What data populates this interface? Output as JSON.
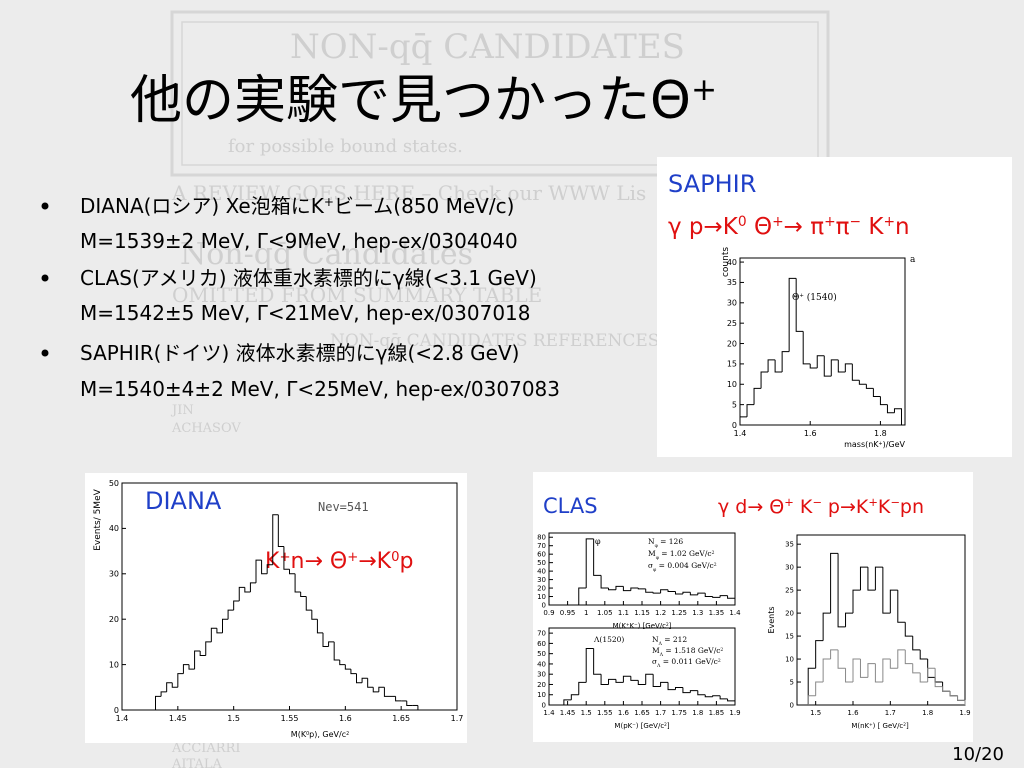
{
  "title": [
    {
      "text": "他の実験で見つかったΘ"
    },
    {
      "sup": "+"
    }
  ],
  "bullets": [
    {
      "lines": [
        [
          {
            "text": "DIANA(ロシア) Xe泡箱にK"
          },
          {
            "sup": "+"
          },
          {
            "text": "ビーム(850 MeV/c)"
          }
        ],
        [
          {
            "text": "M=1539±2 MeV, Γ<9MeV, hep-ex/0304040"
          }
        ]
      ]
    },
    {
      "lines": [
        [
          {
            "text": "CLAS(アメリカ) 液体重水素標的にγ線(<3.1 GeV)"
          }
        ],
        [
          {
            "text": "M=1542±5 MeV, Γ<21MeV, hep-ex/0307018"
          }
        ]
      ]
    },
    {
      "lines": [
        [
          {
            "text": "SAPHIR(ドイツ) 液体水素標的にγ線(<2.8 GeV)"
          }
        ],
        [
          {
            "text": "M=1540±4±2 MeV, Γ<25MeV, hep-ex/0307083"
          }
        ]
      ]
    }
  ],
  "page_number": "10/20",
  "watermark": [
    "NON-qq̄ CANDIDATES",
    "for possible bound states.",
    "A REVIEW GOES HERE – Check our WWW Lis",
    "Non-qq̄ Candidates",
    "OMITTED FROM SUMMARY TABLE",
    "NON-qq̄ CANDIDATES REFERENCES",
    "JIN",
    "ACHASOV",
    "ACCIARRI",
    "AITALA"
  ],
  "figures": [
    {
      "name": "SAPHIR",
      "reaction": [
        {
          "text": "γ p→K"
        },
        {
          "sup": "0"
        },
        {
          "text": " Θ"
        },
        {
          "sup": "+"
        },
        {
          "text": "→ π"
        },
        {
          "sup": "+"
        },
        {
          "text": "π"
        },
        {
          "sup": "−"
        },
        {
          "text": " K"
        },
        {
          "sup": "+"
        },
        {
          "text": "n"
        }
      ],
      "plots": [
        {
          "type": "histogram",
          "xlim": [
            1.4,
            1.87
          ],
          "ylim": [
            0,
            41
          ],
          "xticks": [
            1.4,
            1.6,
            1.8
          ],
          "yticks": [
            0,
            5,
            10,
            15,
            20,
            25,
            30,
            35,
            40
          ],
          "xlabel": [
            {
              "text": "mass(nK"
            },
            {
              "sup": "+"
            },
            {
              "text": ")/GeV"
            }
          ],
          "ylabel": "counts",
          "annotations": [
            [
              {
                "text": "a"
              }
            ],
            [
              {
                "text": "Θ"
              },
              {
                "sup": "+"
              },
              {
                "text": " (1540)"
              }
            ]
          ],
          "bins": [
            1.4,
            1.42,
            1.44,
            1.46,
            1.48,
            1.5,
            1.52,
            1.54,
            1.56,
            1.58,
            1.6,
            1.62,
            1.64,
            1.66,
            1.68,
            1.7,
            1.72,
            1.74,
            1.76,
            1.78,
            1.8,
            1.82,
            1.84,
            1.86
          ],
          "series": [
            {
              "color": "#000000",
              "counts": [
                2,
                5,
                9,
                13,
                16,
                13,
                18,
                36,
                23,
                15,
                14,
                17,
                12,
                16,
                13,
                15,
                11,
                10,
                9,
                7,
                5,
                3,
                4
              ]
            }
          ]
        }
      ]
    },
    {
      "name": "DIANA",
      "reaction": [
        {
          "text": "K"
        },
        {
          "sup": "+"
        },
        {
          "text": "n→ Θ"
        },
        {
          "sup": "+"
        },
        {
          "text": "→K"
        },
        {
          "sup": "0"
        },
        {
          "text": "p"
        }
      ],
      "note": "Nev=541",
      "plots": [
        {
          "type": "histogram",
          "xlim": [
            1.4,
            1.7
          ],
          "ylim": [
            0,
            50
          ],
          "xticks": [
            1.4,
            1.45,
            1.5,
            1.55,
            1.6,
            1.65,
            1.7
          ],
          "yticks": [
            0,
            10,
            20,
            30,
            40,
            50
          ],
          "xlabel": [
            {
              "text": "M(K"
            },
            {
              "sup": "0"
            },
            {
              "text": "p), GeV/c"
            },
            {
              "sup": "2"
            }
          ],
          "ylabel": "Events/ 5MeV",
          "annotations": [],
          "bins": [
            1.4,
            1.405,
            1.41,
            1.415,
            1.42,
            1.425,
            1.43,
            1.435,
            1.44,
            1.445,
            1.45,
            1.455,
            1.46,
            1.465,
            1.47,
            1.475,
            1.48,
            1.485,
            1.49,
            1.495,
            1.5,
            1.505,
            1.51,
            1.515,
            1.52,
            1.525,
            1.53,
            1.535,
            1.54,
            1.545,
            1.55,
            1.555,
            1.56,
            1.565,
            1.57,
            1.575,
            1.58,
            1.585,
            1.59,
            1.595,
            1.6,
            1.605,
            1.61,
            1.615,
            1.62,
            1.625,
            1.63,
            1.635,
            1.64,
            1.645,
            1.65,
            1.655,
            1.66,
            1.665,
            1.67,
            1.675,
            1.68,
            1.685,
            1.69,
            1.695,
            1.7
          ],
          "series": [
            {
              "color": "#000000",
              "counts": [
                0,
                0,
                0,
                0,
                0,
                0,
                3,
                4,
                6,
                5,
                8,
                10,
                9,
                13,
                12,
                15,
                18,
                17,
                20,
                22,
                24,
                27,
                26,
                28,
                33,
                30,
                32,
                43,
                36,
                31,
                30,
                26,
                25,
                22,
                20,
                17,
                14,
                15,
                11,
                10,
                9,
                8,
                6,
                7,
                5,
                4,
                5,
                3,
                3,
                2,
                2,
                1,
                1,
                0,
                0,
                0,
                0,
                0,
                0,
                0
              ]
            }
          ]
        }
      ]
    },
    {
      "name": "CLAS",
      "reaction": [
        {
          "text": "γ d→ Θ"
        },
        {
          "sup": "+"
        },
        {
          "text": " K"
        },
        {
          "sup": "−"
        },
        {
          "text": " p→K"
        },
        {
          "sup": "+"
        },
        {
          "text": "K"
        },
        {
          "sup": "−"
        },
        {
          "text": "pn"
        }
      ],
      "plots": [
        {
          "type": "histogram",
          "xlim": [
            0.9,
            1.4
          ],
          "ylim": [
            0,
            85
          ],
          "xticks": [
            0.9,
            0.95,
            1,
            1.05,
            1.1,
            1.15,
            1.2,
            1.25,
            1.3,
            1.35,
            1.4
          ],
          "yticks": [
            0,
            10,
            20,
            30,
            40,
            50,
            60,
            70,
            80
          ],
          "xlabel": [
            {
              "text": "M(K"
            },
            {
              "sup": "+"
            },
            {
              "text": "K"
            },
            {
              "sup": "−"
            },
            {
              "text": ") [GeV/c"
            },
            {
              "sup": "2"
            },
            {
              "text": "]"
            }
          ],
          "annotations": [
            [
              {
                "text": "φ"
              }
            ],
            [
              {
                "text": "N"
              },
              {
                "sub": "φ"
              },
              {
                "text": " = 126"
              }
            ],
            [
              {
                "text": "M"
              },
              {
                "sub": "φ"
              },
              {
                "text": " = 1.02 GeV/c"
              },
              {
                "sup": "2"
              }
            ],
            [
              {
                "text": "σ"
              },
              {
                "sub": "φ"
              },
              {
                "text": " = 0.004 GeV/c"
              },
              {
                "sup": "2"
              }
            ]
          ],
          "bins": [
            0.98,
            1,
            1.02,
            1.04,
            1.06,
            1.08,
            1.1,
            1.12,
            1.14,
            1.16,
            1.18,
            1.2,
            1.22,
            1.24,
            1.26,
            1.28,
            1.3,
            1.32,
            1.34,
            1.36,
            1.38,
            1.4
          ],
          "series": [
            {
              "color": "#000000",
              "counts": [
                20,
                78,
                35,
                20,
                18,
                22,
                17,
                20,
                19,
                15,
                14,
                18,
                16,
                13,
                15,
                12,
                14,
                10,
                9,
                11,
                8
              ]
            }
          ]
        },
        {
          "type": "histogram",
          "xlim": [
            1.4,
            1.9
          ],
          "ylim": [
            0,
            75
          ],
          "xticks": [
            1.4,
            1.45,
            1.5,
            1.55,
            1.6,
            1.65,
            1.7,
            1.75,
            1.8,
            1.85,
            1.9
          ],
          "yticks": [
            0,
            10,
            20,
            30,
            40,
            50,
            60,
            70
          ],
          "xlabel": [
            {
              "text": "M(pK"
            },
            {
              "sup": "−"
            },
            {
              "text": ") [GeV/c"
            },
            {
              "sup": "2"
            },
            {
              "text": "]"
            }
          ],
          "annotations": [
            [
              {
                "text": "Λ(1520)"
              }
            ],
            [
              {
                "text": "N"
              },
              {
                "sub": "Λ"
              },
              {
                "text": " = 212"
              }
            ],
            [
              {
                "text": "M"
              },
              {
                "sub": "Λ"
              },
              {
                "text": " = 1.518 GeV/c"
              },
              {
                "sup": "2"
              }
            ],
            [
              {
                "text": "σ"
              },
              {
                "sub": "Λ"
              },
              {
                "text": " = 0.011 GeV/c"
              },
              {
                "sup": "2"
              }
            ]
          ],
          "bins": [
            1.44,
            1.46,
            1.48,
            1.5,
            1.52,
            1.54,
            1.56,
            1.58,
            1.6,
            1.62,
            1.64,
            1.66,
            1.68,
            1.7,
            1.72,
            1.74,
            1.76,
            1.78,
            1.8,
            1.82,
            1.84,
            1.86,
            1.88,
            1.9
          ],
          "series": [
            {
              "color": "#000000",
              "counts": [
                5,
                10,
                22,
                55,
                30,
                20,
                25,
                22,
                28,
                24,
                20,
                30,
                18,
                22,
                15,
                17,
                12,
                14,
                10,
                8,
                9,
                6,
                4
              ]
            }
          ]
        },
        {
          "type": "histogram",
          "xlim": [
            1.45,
            1.9
          ],
          "ylim": [
            0,
            37
          ],
          "xticks": [
            1.5,
            1.6,
            1.7,
            1.8,
            1.9
          ],
          "yticks": [
            0,
            5,
            10,
            15,
            20,
            25,
            30,
            35
          ],
          "xlabel": [
            {
              "text": "M(nK"
            },
            {
              "sup": "+"
            },
            {
              "text": ") [ GeV/c"
            },
            {
              "sup": "2"
            },
            {
              "text": "]"
            }
          ],
          "ylabel": "Events",
          "annotations": [],
          "bins": [
            1.48,
            1.5,
            1.52,
            1.54,
            1.56,
            1.58,
            1.6,
            1.62,
            1.64,
            1.66,
            1.68,
            1.7,
            1.72,
            1.74,
            1.76,
            1.78,
            1.8,
            1.82,
            1.84,
            1.86,
            1.88,
            1.9
          ],
          "series": [
            {
              "color": "#000000",
              "counts": [
                8,
                14,
                20,
                33,
                17,
                20,
                25,
                30,
                25,
                30,
                20,
                25,
                18,
                15,
                12,
                10,
                6,
                5,
                3,
                2,
                1
              ]
            },
            {
              "color": "#888888",
              "counts": [
                2,
                5,
                10,
                12,
                8,
                5,
                10,
                6,
                9,
                5,
                10,
                8,
                12,
                9,
                7,
                5,
                8,
                4,
                3,
                2,
                1
              ]
            }
          ]
        }
      ]
    }
  ]
}
